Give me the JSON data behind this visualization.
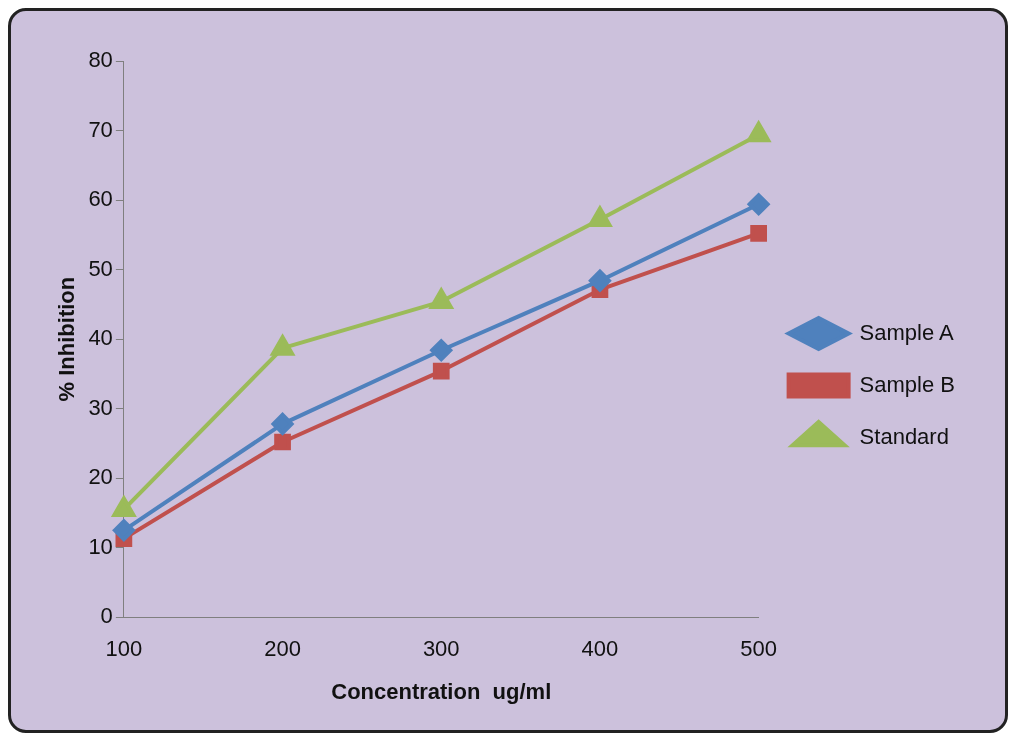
{
  "chart_data": {
    "type": "line",
    "xlabel": "Concentration  ug/ml",
    "ylabel": "% Inhibition",
    "categories": [
      "100",
      "200",
      "300",
      "400",
      "500"
    ],
    "series": [
      {
        "name": "Sample A",
        "color": "#4f81bd",
        "marker": "diamond",
        "values": [
          12.5,
          27.8,
          38.4,
          48.4,
          59.4
        ]
      },
      {
        "name": "Sample B",
        "color": "#c0504d",
        "marker": "square",
        "values": [
          11.3,
          25.2,
          35.4,
          47.1,
          55.2
        ]
      },
      {
        "name": "Standard",
        "color": "#9bbb59",
        "marker": "triangle",
        "values": [
          15.5,
          38.7,
          45.4,
          57.2,
          69.4
        ]
      }
    ],
    "ylim": [
      0,
      80
    ],
    "yticks": [
      0,
      10,
      20,
      30,
      40,
      50,
      60,
      70,
      80
    ],
    "grid": false,
    "legend": "right"
  }
}
